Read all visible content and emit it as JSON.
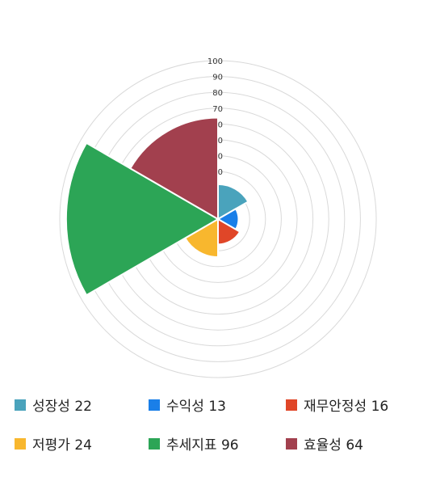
{
  "chart_data": {
    "type": "polar-area",
    "title": "",
    "radial_axis": {
      "min": 0,
      "max": 100,
      "step": 10,
      "tick_labels": [
        "100",
        "90",
        "80",
        "70",
        "0",
        "0",
        "0",
        "0"
      ]
    },
    "grid": true,
    "legend_position": "bottom",
    "series": [
      {
        "name": "성장성",
        "value": 22,
        "color": "#4aa3bc"
      },
      {
        "name": "수익성",
        "value": 13,
        "color": "#1a7fe8"
      },
      {
        "name": "재무안정성",
        "value": 16,
        "color": "#e04628"
      },
      {
        "name": "저평가",
        "value": 24,
        "color": "#f8b72e"
      },
      {
        "name": "추세지표",
        "value": 96,
        "color": "#2ca556"
      },
      {
        "name": "효율성",
        "value": 64,
        "color": "#a2404e"
      }
    ],
    "legend_labels": [
      "성장성 22",
      "수익성 13",
      "재무안정성 16",
      "저평가 24",
      "추세지표 96",
      "효율성 64"
    ]
  }
}
